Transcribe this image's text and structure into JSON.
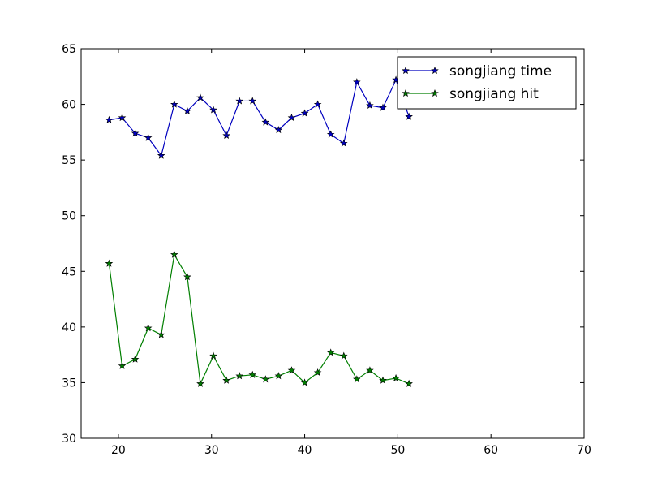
{
  "chart_data": {
    "type": "line",
    "title": "",
    "xlabel": "",
    "ylabel": "",
    "xlim": [
      16,
      70
    ],
    "ylim": [
      30,
      65
    ],
    "xticks": [
      20,
      30,
      40,
      50,
      60,
      70
    ],
    "yticks": [
      30,
      35,
      40,
      45,
      50,
      55,
      60,
      65
    ],
    "grid": false,
    "legend_position": "top-right",
    "x": [
      19.0,
      20.4,
      21.8,
      23.2,
      24.6,
      26.0,
      27.4,
      28.8,
      30.2,
      31.6,
      33.0,
      34.4,
      35.8,
      37.2,
      38.6,
      40.0,
      41.4,
      42.8,
      44.2,
      45.6,
      47.0,
      48.4,
      49.8,
      51.2
    ],
    "series": [
      {
        "name": "songjiang time",
        "color": "#0000bf",
        "marker": "star",
        "values": [
          58.6,
          58.8,
          57.4,
          57.0,
          55.4,
          60.0,
          59.4,
          60.6,
          59.5,
          57.2,
          60.3,
          60.3,
          58.4,
          57.7,
          58.8,
          59.2,
          60.0,
          57.3,
          56.5,
          62.0,
          59.9,
          59.7,
          62.2,
          58.9
        ]
      },
      {
        "name": "songjiang hit",
        "color": "#007f00",
        "marker": "star",
        "values": [
          45.7,
          36.5,
          37.1,
          39.9,
          39.3,
          46.5,
          44.5,
          34.9,
          37.4,
          35.2,
          35.6,
          35.7,
          35.3,
          35.6,
          36.1,
          35.0,
          35.9,
          37.7,
          37.4,
          35.3,
          36.1,
          35.2,
          35.4,
          34.9
        ]
      }
    ]
  }
}
